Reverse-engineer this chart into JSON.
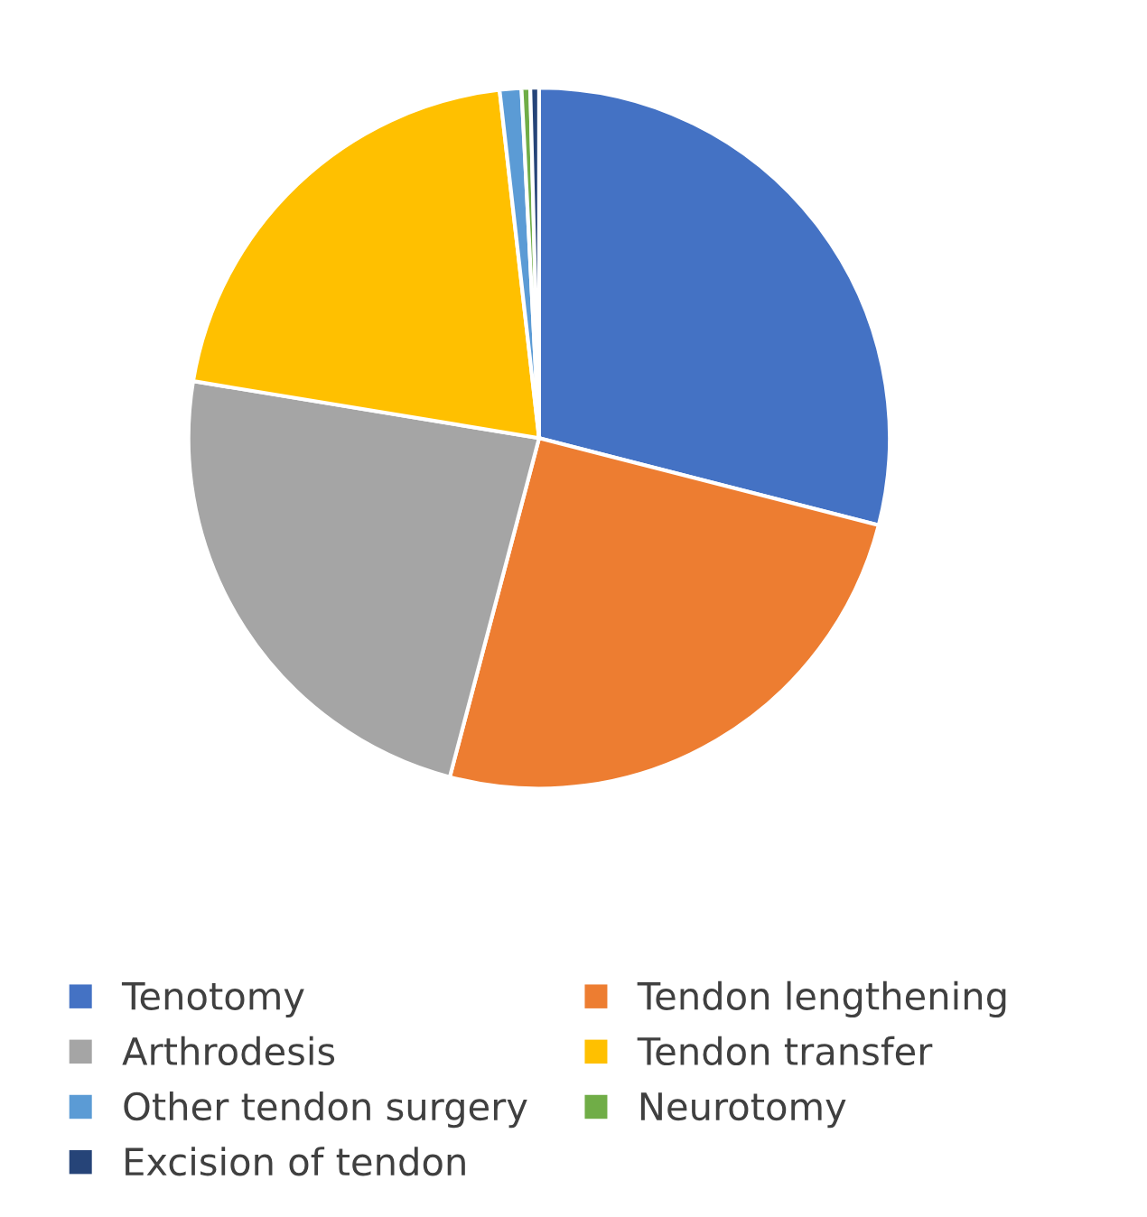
{
  "chart_data": {
    "type": "pie",
    "categories": [
      "Tenotomy",
      "Tendon lengthening",
      "Arthrodesis",
      "Tendon transfer",
      "Other tendon surgery",
      "Neurotomy",
      "Excision of tendon"
    ],
    "values": [
      29,
      25.1,
      23.5,
      20.6,
      1.0,
      0.4,
      0.4
    ],
    "colors": [
      "#4472c4",
      "#ed7d31",
      "#a5a5a5",
      "#ffc000",
      "#5b9bd5",
      "#70ad47",
      "#264478"
    ],
    "legend": "bottom"
  }
}
